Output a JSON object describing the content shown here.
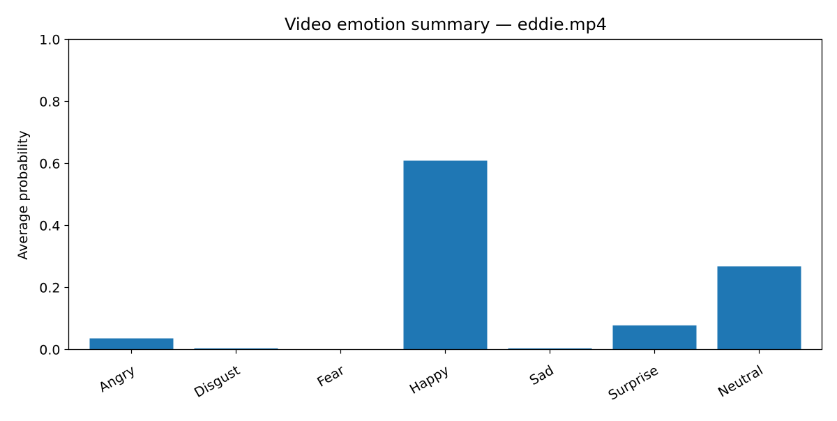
{
  "chart_data": {
    "type": "bar",
    "title": "Video emotion summary — eddie.mp4",
    "xlabel": "",
    "ylabel": "Average probability",
    "categories": [
      "Angry",
      "Disgust",
      "Fear",
      "Happy",
      "Sad",
      "Surprise",
      "Neutral"
    ],
    "values": [
      0.036,
      0.004,
      0.001,
      0.609,
      0.004,
      0.078,
      0.268
    ],
    "ylim": [
      0,
      1.0
    ],
    "yticks": [
      "0.0",
      "0.2",
      "0.4",
      "0.6",
      "0.8",
      "1.0"
    ],
    "bar_color": "#1f77b4",
    "grid": false,
    "legend": "none"
  }
}
